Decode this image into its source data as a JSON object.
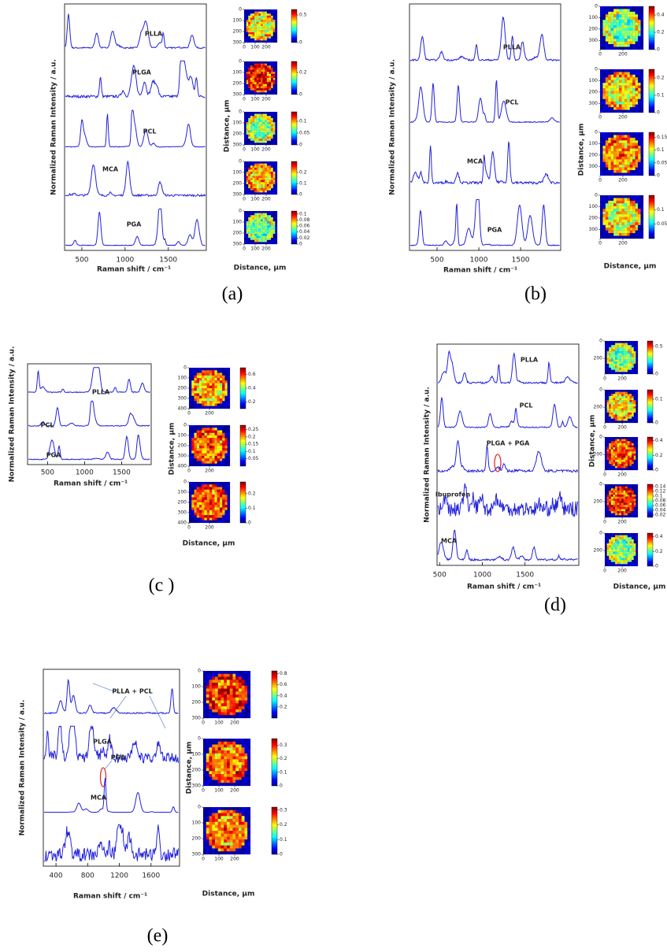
{
  "panels": [
    {
      "caption": "(a)",
      "spectra": {
        "ylabel": "Normalized Raman Intensity / a.u.",
        "xlabel": "Raman shift / cm⁻¹",
        "xlim": [
          300,
          1940
        ],
        "xticks": [
          500,
          1000,
          1500
        ],
        "labels": [
          "PLLA",
          "PLGA",
          "PCL",
          "MCA",
          "PGA"
        ]
      },
      "maps": {
        "ylabel": "Distance, µm",
        "xlabel": "Distance, µm",
        "lim": [
          0,
          300
        ],
        "xticks": [
          0,
          100,
          200
        ],
        "yticks": [
          0,
          100,
          200,
          300
        ],
        "colorbars": [
          {
            "lim": [
              0,
              0.6
            ],
            "ticks": [
              0.5,
              0
            ]
          },
          {
            "lim": [
              0,
              0.3
            ],
            "ticks": [
              0.2,
              0
            ]
          },
          {
            "lim": [
              0,
              0.14
            ],
            "ticks": [
              0.1,
              0.05,
              0
            ]
          },
          {
            "lim": [
              0,
              0.3
            ],
            "ticks": [
              0.2,
              0.1,
              0
            ]
          },
          {
            "lim": [
              0,
              0.11
            ],
            "ticks": [
              0.1,
              0.08,
              0.06,
              0.04,
              0.02,
              0
            ]
          }
        ]
      }
    },
    {
      "caption": "(b)",
      "spectra": {
        "ylabel": "Normalized Raman Intensity / a.u.",
        "xlabel": "Raman shift / cm⁻¹",
        "xlim": [
          170,
          1980
        ],
        "xticks": [
          500,
          1000,
          1500
        ],
        "labels": [
          "PLLA",
          "PCL",
          "MCA",
          "PGA"
        ]
      },
      "maps": {
        "ylabel": "Distance, µm",
        "xlabel": "Distance, µm",
        "lim": [
          0,
          380
        ],
        "xticks": [
          0,
          200
        ],
        "yticks": [
          0,
          100,
          200,
          300
        ],
        "colorbars": [
          {
            "lim": [
              0,
              0.5
            ],
            "ticks": [
              0.4,
              0.2,
              0
            ]
          },
          {
            "lim": [
              0,
              0.25
            ],
            "ticks": [
              0.2,
              0.1,
              0
            ]
          },
          {
            "lim": [
              0,
              0.17
            ],
            "ticks": [
              0.15,
              0.1,
              0.05,
              0
            ]
          },
          {
            "lim": [
              0,
              0.15
            ],
            "ticks": [
              0.1,
              0.05
            ]
          }
        ]
      }
    },
    {
      "caption": "(c )",
      "spectra": {
        "ylabel": "Normalized Raman Intensity / a.u.",
        "xlabel": "Raman shift / cm⁻¹",
        "xlim": [
          230,
          1900
        ],
        "xticks": [
          500,
          1000,
          1500
        ],
        "labels": [
          "PLLA",
          "PCL",
          "PGA"
        ]
      },
      "maps": {
        "ylabel": "Distance, µm",
        "xlabel": "Distance, µm",
        "lim": [
          0,
          400
        ],
        "xticks": [
          0,
          200
        ],
        "yticks": [
          0,
          100,
          200,
          300,
          400
        ],
        "colorbars": [
          {
            "lim": [
              0.1,
              0.7
            ],
            "ticks": [
              0.6,
              0.4,
              0.2
            ]
          },
          {
            "lim": [
              0,
              0.28
            ],
            "ticks": [
              0.25,
              0.2,
              0.15,
              0.1,
              0.05
            ]
          },
          {
            "lim": [
              0,
              0.28
            ],
            "ticks": [
              0.2,
              0.1,
              0
            ]
          }
        ]
      }
    },
    {
      "caption": "(d)",
      "spectra": {
        "ylabel": "Normalized Raman Intensity / a.u.",
        "xlabel": "Raman shift / cm⁻¹",
        "xlim": [
          470,
          2130
        ],
        "xticks": [
          500,
          1000,
          1500
        ],
        "labels": [
          "PLLA",
          "PCL",
          "PLGA + PGA",
          "Ibuprofen",
          "MCA"
        ]
      },
      "maps": {
        "ylabel": "Distance, µm",
        "xlabel": "Distance, µm",
        "lim": [
          0,
          380
        ],
        "xticks": [
          0,
          200
        ],
        "yticks": [
          0,
          200
        ],
        "colorbars": [
          {
            "lim": [
              0,
              0.6
            ],
            "ticks": [
              0.5,
              0
            ]
          },
          {
            "lim": [
              0,
              0.14
            ],
            "ticks": [
              0.1,
              0
            ]
          },
          {
            "lim": [
              0,
              0.45
            ],
            "ticks": [
              0.4,
              0.2,
              0
            ]
          },
          {
            "lim": [
              0.01,
              0.15
            ],
            "ticks": [
              0.14,
              0.12,
              0.1,
              0.08,
              0.06,
              0.04,
              0.02
            ]
          },
          {
            "lim": [
              0,
              0.45
            ],
            "ticks": [
              0.4,
              0.2,
              0
            ]
          }
        ]
      }
    },
    {
      "caption": "(e)",
      "spectra": {
        "ylabel": "Normalized Raman Intensity / a.u.",
        "xlabel": "Raman shift / cm⁻¹",
        "xlim": [
          240,
          1960
        ],
        "xticks": [
          400,
          800,
          1200,
          1600
        ],
        "labels": [
          "PLLA + PCL",
          "PLGA",
          "PGA",
          "MCA"
        ]
      },
      "maps": {
        "ylabel": "Distance, µm",
        "xlabel": "Distance, µm",
        "lim": [
          0,
          300
        ],
        "xticks": [
          0,
          100,
          200
        ],
        "yticks": [
          0,
          100,
          200,
          300
        ],
        "colorbars": [
          {
            "lim": [
              0,
              0.85
            ],
            "ticks": [
              0.8,
              0.6,
              0.4,
              0.2
            ]
          },
          {
            "lim": [
              0,
              0.35
            ],
            "ticks": [
              0.3,
              0.2,
              0.1,
              0
            ]
          },
          {
            "lim": [
              0,
              0.32
            ],
            "ticks": [
              0.3,
              0.2,
              0.1,
              0
            ]
          }
        ]
      }
    }
  ]
}
